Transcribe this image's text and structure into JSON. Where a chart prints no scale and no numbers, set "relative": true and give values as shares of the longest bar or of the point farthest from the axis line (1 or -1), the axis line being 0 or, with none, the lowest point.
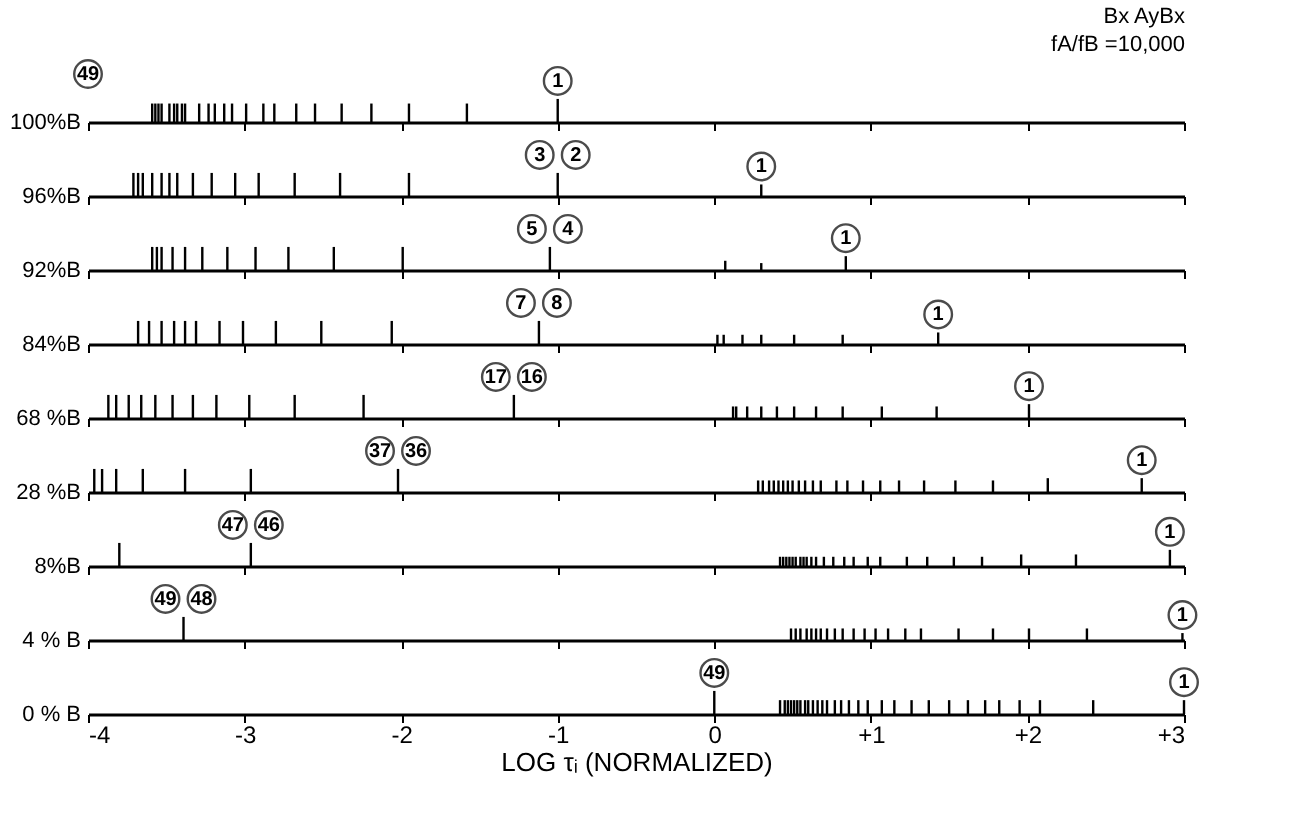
{
  "chart_data": [
    {
      "type": "bar",
      "relative": true,
      "title": "Bx AyBx",
      "subtitle": "fA/fB =10,000",
      "ylabel": "100%B",
      "color": "#000000",
      "xlim": [
        -4,
        3
      ],
      "xticks": [
        -4,
        -3,
        -2,
        -1,
        0,
        1,
        2,
        3
      ],
      "tick_labels": false,
      "x": [
        -3.59,
        -3.57,
        -3.55,
        -3.53,
        -3.48,
        -3.45,
        -3.43,
        -3.4,
        -3.38,
        -3.29,
        -3.23,
        -3.19,
        -3.13,
        -3.08,
        -2.99,
        -2.88,
        -2.81,
        -2.67,
        -2.55,
        -2.38,
        -2.19,
        -1.95,
        -1.58,
        -1.0
      ],
      "values": [
        0.8,
        0.8,
        0.8,
        0.8,
        0.8,
        0.8,
        0.8,
        0.8,
        0.8,
        0.8,
        0.8,
        0.8,
        0.8,
        0.8,
        0.8,
        0.8,
        0.8,
        0.8,
        0.8,
        0.8,
        0.8,
        0.8,
        0.8,
        1
      ],
      "annotations": [
        "49",
        {
          "text": "1",
          "x": -1.0,
          "y": 1
        }
      ]
    },
    {
      "type": "bar",
      "relative": true,
      "ylabel": "96%B",
      "color": "#000000",
      "xlim": [
        -4,
        3
      ],
      "xticks": [
        -4,
        -3,
        -2,
        -1,
        0,
        1,
        2,
        3
      ],
      "tick_labels": false,
      "x": [
        -3.71,
        -3.68,
        -3.65,
        -3.59,
        -3.53,
        -3.48,
        -3.43,
        -3.33,
        -3.21,
        -3.06,
        -2.91,
        -2.68,
        -2.39,
        -1.95,
        -1.0,
        0.3
      ],
      "values": [
        1,
        1,
        1,
        1,
        1,
        1,
        1,
        1,
        1,
        1,
        1,
        1,
        1,
        1,
        1,
        0.5
      ],
      "annotations": [
        {
          "text": "3",
          "x": -1.0,
          "y": 1
        },
        {
          "text": "2",
          "x": -1.0,
          "y": 1
        },
        {
          "text": "1",
          "x": 0.3,
          "y": 0.5
        }
      ]
    },
    {
      "type": "bar",
      "relative": true,
      "ylabel": "92%B",
      "color": "#000000",
      "xlim": [
        -4,
        3
      ],
      "xticks": [
        -4,
        -3,
        -2,
        -1,
        0,
        1,
        2,
        3
      ],
      "tick_labels": false,
      "x": [
        -3.59,
        -3.56,
        -3.53,
        -3.46,
        -3.38,
        -3.27,
        -3.11,
        -2.93,
        -2.72,
        -2.43,
        -1.99,
        -1.05,
        0.07,
        0.3,
        0.84
      ],
      "values": [
        1,
        1,
        1,
        1,
        1,
        1,
        1,
        1,
        1,
        1,
        1,
        1,
        0.4,
        0.3,
        0.6
      ],
      "annotations": [
        {
          "text": "5",
          "x": -1.05,
          "y": 1
        },
        {
          "text": "4",
          "x": -1.05,
          "y": 1
        },
        {
          "text": "1",
          "x": 0.84,
          "y": 0.6
        }
      ]
    },
    {
      "type": "bar",
      "relative": true,
      "ylabel": "84%B",
      "color": "#000000",
      "xlim": [
        -4,
        3
      ],
      "xticks": [
        -4,
        -3,
        -2,
        -1,
        0,
        1,
        2,
        3
      ],
      "tick_labels": false,
      "x": [
        -3.68,
        -3.61,
        -3.53,
        -3.45,
        -3.38,
        -3.31,
        -3.16,
        -3.01,
        -2.8,
        -2.51,
        -2.06,
        -1.12,
        0.02,
        0.06,
        0.18,
        0.3,
        0.51,
        0.82,
        1.43
      ],
      "values": [
        1,
        1,
        1,
        1,
        1,
        1,
        1,
        1,
        1,
        1,
        1,
        1,
        0.4,
        0.4,
        0.4,
        0.4,
        0.4,
        0.4,
        0.5
      ],
      "annotations": [
        {
          "text": "7",
          "x": -1.12,
          "y": 1
        },
        {
          "text": "8",
          "x": -1.12,
          "y": 1
        },
        {
          "text": "1",
          "x": 1.43,
          "y": 0.5
        }
      ]
    },
    {
      "type": "bar",
      "relative": true,
      "ylabel": "68 %B",
      "color": "#000000",
      "xlim": [
        -4,
        3
      ],
      "xticks": [
        -4,
        -3,
        -2,
        -1,
        0,
        1,
        2,
        3
      ],
      "tick_labels": false,
      "x": [
        -3.87,
        -3.82,
        -3.74,
        -3.66,
        -3.57,
        -3.46,
        -3.33,
        -3.18,
        -2.97,
        -2.68,
        -2.24,
        -1.28,
        0.12,
        0.14,
        0.21,
        0.3,
        0.4,
        0.51,
        0.65,
        0.82,
        1.07,
        1.42,
        2.01
      ],
      "values": [
        1,
        1,
        1,
        1,
        1,
        1,
        1,
        1,
        1,
        1,
        1,
        1,
        0.5,
        0.5,
        0.5,
        0.5,
        0.5,
        0.5,
        0.5,
        0.5,
        0.5,
        0.5,
        0.6
      ],
      "annotations": [
        {
          "text": "17",
          "x": -1.28,
          "y": 1
        },
        {
          "text": "16",
          "x": -1.28,
          "y": 1
        },
        {
          "text": "1",
          "x": 2.01,
          "y": 0.6
        }
      ]
    },
    {
      "type": "bar",
      "relative": true,
      "ylabel": "28 %B",
      "color": "#000000",
      "xlim": [
        -4,
        3
      ],
      "xticks": [
        -4,
        -3,
        -2,
        -1,
        0,
        1,
        2,
        3
      ],
      "tick_labels": false,
      "x": [
        -3.96,
        -3.91,
        -3.82,
        -3.65,
        -3.38,
        -2.96,
        -2.02,
        0.28,
        0.31,
        0.35,
        0.38,
        0.41,
        0.44,
        0.47,
        0.5,
        0.54,
        0.58,
        0.63,
        0.68,
        0.78,
        0.85,
        0.95,
        1.06,
        1.18,
        1.34,
        1.54,
        1.78,
        2.13,
        2.73
      ],
      "values": [
        1,
        1,
        1,
        1,
        1,
        1,
        1,
        0.5,
        0.5,
        0.5,
        0.5,
        0.5,
        0.5,
        0.5,
        0.5,
        0.5,
        0.5,
        0.5,
        0.5,
        0.5,
        0.5,
        0.5,
        0.5,
        0.5,
        0.5,
        0.5,
        0.5,
        0.6,
        0.6
      ],
      "annotations": [
        {
          "text": "37",
          "x": -2.02,
          "y": 1
        },
        {
          "text": "36",
          "x": -2.02,
          "y": 1
        },
        {
          "text": "1",
          "x": 2.73,
          "y": 0.6
        }
      ]
    },
    {
      "type": "bar",
      "relative": true,
      "ylabel": "8%B",
      "color": "#000000",
      "xlim": [
        -4,
        3
      ],
      "xticks": [
        -4,
        -3,
        -2,
        -1,
        0,
        1,
        2,
        3
      ],
      "tick_labels": false,
      "x": [
        -3.8,
        -2.96,
        0.42,
        0.44,
        0.46,
        0.48,
        0.5,
        0.52,
        0.55,
        0.57,
        0.59,
        0.62,
        0.65,
        0.7,
        0.76,
        0.83,
        0.89,
        0.98,
        1.06,
        1.23,
        1.36,
        1.53,
        1.71,
        1.96,
        2.31,
        2.91
      ],
      "values": [
        1,
        1,
        0.4,
        0.4,
        0.4,
        0.4,
        0.4,
        0.4,
        0.4,
        0.4,
        0.4,
        0.4,
        0.4,
        0.4,
        0.4,
        0.4,
        0.4,
        0.4,
        0.4,
        0.4,
        0.4,
        0.4,
        0.4,
        0.5,
        0.5,
        0.7
      ],
      "annotations": [
        {
          "text": "47",
          "x": -2.96,
          "y": 1
        },
        {
          "text": "46",
          "x": -2.96,
          "y": 1
        },
        {
          "text": "1",
          "x": 2.91,
          "y": 0.7
        }
      ]
    },
    {
      "type": "bar",
      "relative": true,
      "ylabel": "4 % B",
      "color": "#000000",
      "xlim": [
        -4,
        3
      ],
      "xticks": [
        -4,
        -3,
        -2,
        -1,
        0,
        1,
        2,
        3
      ],
      "tick_labels": false,
      "x": [
        -3.39,
        0.49,
        0.52,
        0.55,
        0.59,
        0.62,
        0.65,
        0.68,
        0.72,
        0.77,
        0.82,
        0.89,
        0.96,
        1.03,
        1.11,
        1.22,
        1.32,
        1.56,
        1.78,
        2.01,
        2.38,
        2.99
      ],
      "values": [
        1,
        0.5,
        0.5,
        0.5,
        0.5,
        0.5,
        0.5,
        0.5,
        0.5,
        0.5,
        0.5,
        0.5,
        0.5,
        0.5,
        0.5,
        0.5,
        0.5,
        0.5,
        0.5,
        0.5,
        0.5,
        0.3
      ],
      "annotations": [
        {
          "text": "49",
          "x": -3.39,
          "y": 1
        },
        {
          "text": "48",
          "x": -3.39,
          "y": 1
        },
        {
          "text": "1",
          "x": 2.99,
          "y": 0.3
        }
      ]
    },
    {
      "type": "bar",
      "relative": true,
      "ylabel": "0 % B",
      "xlabel": "LOG τᵢ (NORMALIZED)",
      "color": "#000000",
      "xlim": [
        -4,
        3
      ],
      "xticks": [
        {
          "value": -4,
          "label": "-4"
        },
        {
          "value": -3,
          "label": "-3"
        },
        {
          "value": -2,
          "label": "-2"
        },
        {
          "value": -1,
          "label": "-1"
        },
        {
          "value": 0,
          "label": "0"
        },
        {
          "value": 1,
          "label": "+1"
        },
        {
          "value": 2,
          "label": "+2"
        },
        {
          "value": 3,
          "label": "+3"
        }
      ],
      "tick_labels": "x",
      "x": [
        0,
        0.42,
        0.45,
        0.47,
        0.49,
        0.51,
        0.53,
        0.55,
        0.58,
        0.6,
        0.63,
        0.66,
        0.69,
        0.72,
        0.77,
        0.81,
        0.86,
        0.92,
        0.98,
        1.07,
        1.15,
        1.26,
        1.37,
        1.5,
        1.62,
        1.73,
        1.82,
        1.95,
        2.08,
        2.42,
        3.0
      ],
      "values": [
        1,
        0.6,
        0.6,
        0.6,
        0.6,
        0.6,
        0.6,
        0.6,
        0.6,
        0.6,
        0.6,
        0.6,
        0.6,
        0.6,
        0.6,
        0.6,
        0.6,
        0.6,
        0.6,
        0.6,
        0.6,
        0.6,
        0.6,
        0.6,
        0.6,
        0.6,
        0.6,
        0.6,
        0.6,
        0.6,
        0.6
      ],
      "annotations": [
        {
          "text": "49",
          "x": 0,
          "y": 1
        },
        {
          "text": "1",
          "x": 3.0,
          "y": 0.6
        }
      ]
    }
  ]
}
